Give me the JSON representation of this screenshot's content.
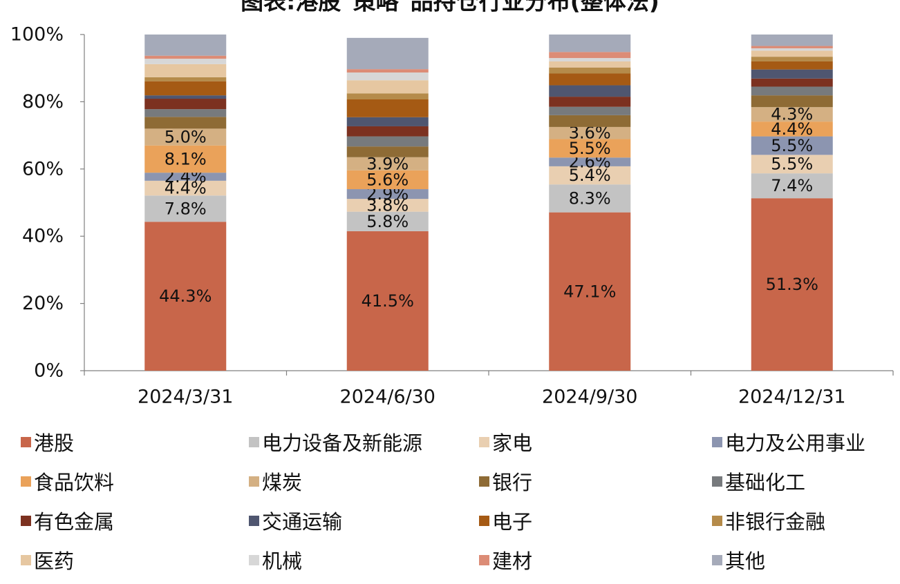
{
  "chart_data": {
    "type": "bar",
    "stacked": true,
    "title": "图表:港股\"策略\"品持仓行业分布(整体法)",
    "categories": [
      "2024/3/31",
      "2024/6/30",
      "2024/9/30",
      "2024/12/31"
    ],
    "y_ticks": [
      "0%",
      "20%",
      "40%",
      "60%",
      "80%",
      "100%"
    ],
    "ylim": [
      0,
      100
    ],
    "grid": false,
    "legend_position": "bottom",
    "series": [
      {
        "name": "港股",
        "color": "#C8664A",
        "values": [
          44.3,
          41.5,
          47.1,
          51.3
        ],
        "labels": [
          "44.3%",
          "41.5%",
          "47.1%",
          "51.3%"
        ]
      },
      {
        "name": "电力设备及新能源",
        "color": "#C3C3C3",
        "values": [
          7.8,
          5.8,
          8.3,
          7.4
        ],
        "labels": [
          "7.8%",
          "5.8%",
          "8.3%",
          "7.4%"
        ]
      },
      {
        "name": "家电",
        "color": "#E9CFB1",
        "values": [
          4.4,
          3.8,
          5.4,
          5.5
        ],
        "labels": [
          "4.4%",
          "3.8%",
          "5.4%",
          "5.5%"
        ]
      },
      {
        "name": "电力及公用事业",
        "color": "#8C95B0",
        "values": [
          2.4,
          2.9,
          2.6,
          5.5
        ],
        "labels": [
          "2.4%",
          "2.9%",
          "2.6%",
          "5.5%"
        ]
      },
      {
        "name": "食品饮料",
        "color": "#EAA25A",
        "values": [
          8.1,
          5.6,
          5.5,
          4.4
        ],
        "labels": [
          "8.1%",
          "5.6%",
          "5.5%",
          "4.4%"
        ]
      },
      {
        "name": "煤炭",
        "color": "#D4B083",
        "values": [
          5.0,
          3.9,
          3.6,
          4.3
        ],
        "labels": [
          "5.0%",
          "3.9%",
          "3.6%",
          "4.3%"
        ]
      },
      {
        "name": "银行",
        "color": "#8E6B35",
        "values": [
          3.5,
          3.2,
          3.5,
          3.5
        ],
        "labels": [
          "",
          "",
          "",
          ""
        ]
      },
      {
        "name": "基础化工",
        "color": "#777A7D",
        "values": [
          2.3,
          3.0,
          2.5,
          2.6
        ],
        "labels": [
          "",
          "",
          "",
          ""
        ]
      },
      {
        "name": "有色金属",
        "color": "#7C3120",
        "values": [
          3.1,
          3.0,
          3.0,
          2.4
        ],
        "labels": [
          "",
          "",
          "",
          ""
        ]
      },
      {
        "name": "交通运输",
        "color": "#4F5670",
        "values": [
          1.0,
          2.7,
          3.4,
          2.7
        ],
        "labels": [
          "",
          "",
          "",
          ""
        ]
      },
      {
        "name": "电子",
        "color": "#A55A14",
        "values": [
          4.2,
          5.3,
          3.5,
          2.4
        ],
        "labels": [
          "",
          "",
          "",
          ""
        ]
      },
      {
        "name": "非银行金融",
        "color": "#B58B4A",
        "values": [
          1.2,
          1.8,
          1.8,
          1.4
        ],
        "labels": [
          "",
          "",
          "",
          ""
        ]
      },
      {
        "name": "医药",
        "color": "#E6C7A1",
        "values": [
          3.9,
          3.9,
          1.8,
          1.8
        ],
        "labels": [
          "",
          "",
          "",
          ""
        ]
      },
      {
        "name": "机械",
        "color": "#D7D7D7",
        "values": [
          1.6,
          2.3,
          1.0,
          0.7
        ],
        "labels": [
          "",
          "",
          "",
          ""
        ]
      },
      {
        "name": "建材",
        "color": "#DC8C76",
        "values": [
          0.9,
          1.0,
          1.8,
          0.7
        ],
        "labels": [
          "",
          "",
          "",
          ""
        ]
      },
      {
        "name": "其他",
        "color": "#A5AAB9",
        "values": [
          6.3,
          9.3,
          5.2,
          3.4
        ],
        "labels": [
          "",
          "",
          "",
          ""
        ]
      }
    ]
  }
}
